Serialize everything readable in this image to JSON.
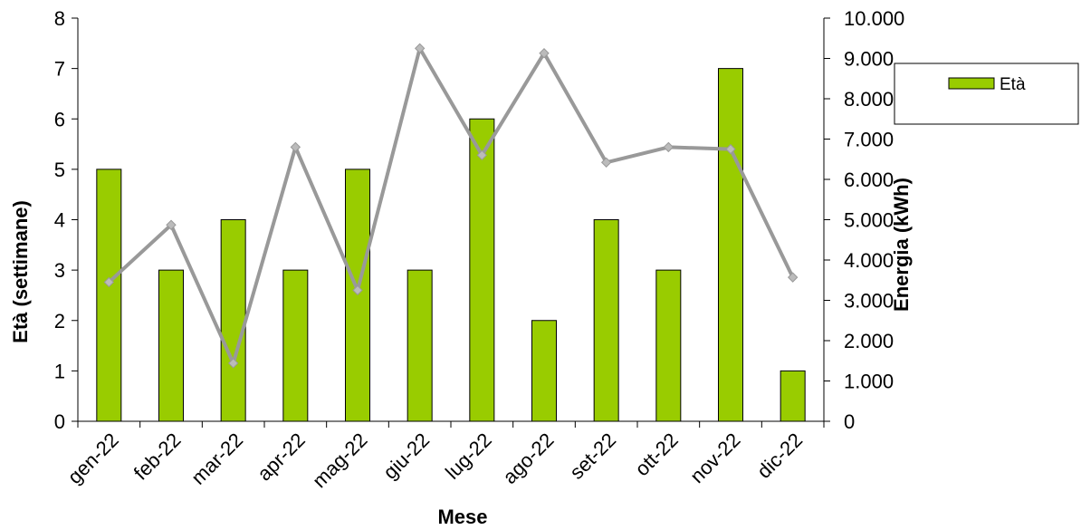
{
  "chart_data": {
    "type": "bar",
    "categories": [
      "gen-22",
      "feb-22",
      "mar-22",
      "apr-22",
      "mag-22",
      "giu-22",
      "lug-22",
      "ago-22",
      "set-22",
      "ott-22",
      "nov-22",
      "dic-22"
    ],
    "series": [
      {
        "name": "Età",
        "type": "bar",
        "axis": "left",
        "color": "#99CC00",
        "values": [
          5,
          3,
          4,
          3,
          5,
          3,
          6,
          2,
          4,
          3,
          7,
          1
        ]
      },
      {
        "type": "line",
        "axis": "right",
        "color": "#999999",
        "values": [
          3450,
          4870,
          1440,
          6800,
          3250,
          9250,
          6600,
          9130,
          6420,
          6800,
          6750,
          3570
        ]
      }
    ],
    "xlabel": "Mese",
    "ylabel": "Età (settimane)",
    "y2label": "Energia (kWh)",
    "ylim": [
      0,
      8
    ],
    "y2lim": [
      0,
      10000
    ],
    "yticks": [
      "0",
      "1",
      "2",
      "3",
      "4",
      "5",
      "6",
      "7",
      "8"
    ],
    "y2ticks": [
      "0",
      "1.000",
      "2.000",
      "3.000",
      "4.000",
      "5.000",
      "6.000",
      "7.000",
      "8.000",
      "9.000",
      "10.000"
    ],
    "grid": false,
    "legend": "right"
  }
}
